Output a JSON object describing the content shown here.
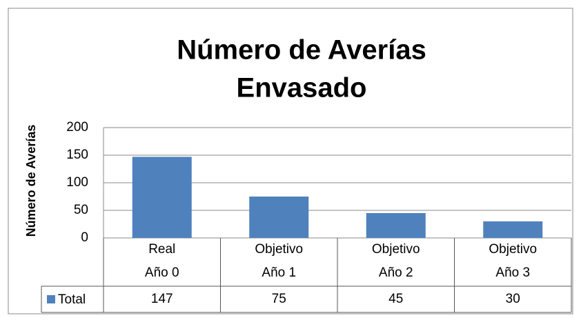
{
  "chart_data": {
    "type": "bar",
    "title": [
      "Número de Averías",
      "Envasado"
    ],
    "y_label": "Número de Averías",
    "categories": [
      [
        "Real",
        "Año 0"
      ],
      [
        "Objetivo",
        "Año 1"
      ],
      [
        "Objetivo",
        "Año 2"
      ],
      [
        "Objetivo",
        "Año 3"
      ]
    ],
    "series": [
      {
        "name": "Total",
        "color": "#4f81bd",
        "values": [
          147,
          75,
          45,
          30
        ]
      }
    ],
    "ylim": [
      0,
      200
    ],
    "yticks": [
      0,
      50,
      100,
      150,
      200
    ],
    "grid": true,
    "data_table": true
  }
}
